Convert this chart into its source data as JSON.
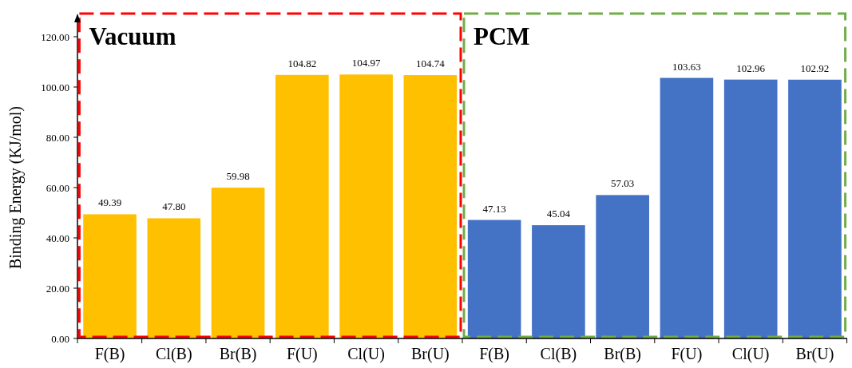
{
  "chart_data": {
    "type": "bar",
    "ylabel": "Binding Energy (KJ/mol)",
    "categories": [
      "F(B)",
      "Cl(B)",
      "Br(B)",
      "F(U)",
      "Cl(U)",
      "Br(U)",
      "F(B)",
      "Cl(B)",
      "Br(B)",
      "F(U)",
      "Cl(U)",
      "Br(U)"
    ],
    "values": [
      49.39,
      47.8,
      59.98,
      104.82,
      104.97,
      104.74,
      47.13,
      45.04,
      57.03,
      103.63,
      102.96,
      102.92
    ],
    "value_labels": [
      "49.39",
      "47.80",
      "59.98",
      "104.82",
      "104.97",
      "104.74",
      "47.13",
      "45.04",
      "57.03",
      "103.63",
      "102.96",
      "102.92"
    ],
    "colors": [
      "#ffc000",
      "#ffc000",
      "#ffc000",
      "#ffc000",
      "#ffc000",
      "#ffc000",
      "#4472c4",
      "#4472c4",
      "#4472c4",
      "#4472c4",
      "#4472c4",
      "#4472c4"
    ],
    "annotations": [
      "Vacuum",
      "PCM"
    ],
    "ylim": [
      0,
      120
    ],
    "yticks": [
      {
        "value": 0,
        "label": "0.00"
      },
      {
        "value": 20,
        "label": "20.00"
      },
      {
        "value": 40,
        "label": "40.00"
      },
      {
        "value": 60,
        "label": "60.00"
      },
      {
        "value": 80,
        "label": "80.00"
      },
      {
        "value": 100,
        "label": "100.00"
      },
      {
        "value": 120,
        "label": "120.00"
      }
    ]
  }
}
